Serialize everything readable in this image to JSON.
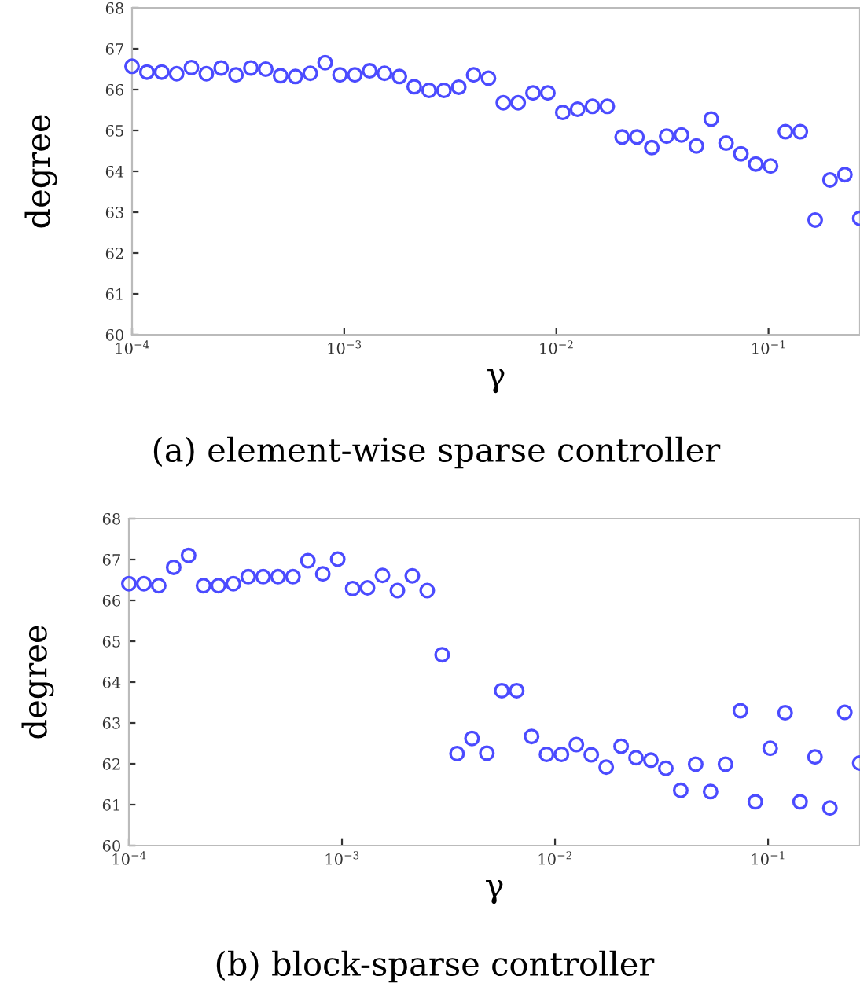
{
  "chart_data": [
    {
      "type": "scatter",
      "xlabel": "γ",
      "ylabel": "degree",
      "log": "x",
      "marker": "circle",
      "grid": false,
      "legend": false,
      "xlim": [
        0.0001,
        0.27
      ],
      "ylim": [
        60,
        68
      ],
      "xticks": [
        {
          "value": 0.0001,
          "label": "10$^{−4}$"
        },
        {
          "value": 0.001,
          "label": "10$^{−3}$"
        },
        {
          "value": 0.01,
          "label": "10$^{−2}$"
        },
        {
          "value": 0.1,
          "label": "10$^{−1}$"
        }
      ],
      "yticks": [
        60,
        61,
        62,
        63,
        64,
        65,
        66,
        67,
        68
      ],
      "annotations": [
        "(a) element-wise sparse controller"
      ],
      "series": [
        {
          "color": "#4b4bff",
          "x": [
            0.0001,
            0.0001175,
            0.000138,
            0.0001622,
            0.0001905,
            0.0002239,
            0.000263,
            0.000309,
            0.0003631,
            0.0004266,
            0.0005012,
            0.0005888,
            0.0006918,
            0.0008128,
            0.000955,
            0.001122,
            0.001318,
            0.001549,
            0.00182,
            0.002138,
            0.002512,
            0.002951,
            0.003467,
            0.004074,
            0.004786,
            0.005623,
            0.006607,
            0.007762,
            0.00912,
            0.01072,
            0.01259,
            0.01479,
            0.01738,
            0.02042,
            0.02399,
            0.02818,
            0.03311,
            0.0389,
            0.04571,
            0.0537,
            0.0631,
            0.07413,
            0.0871,
            0.1023,
            0.1202,
            0.1413,
            0.166,
            0.195,
            0.2291,
            0.2692
          ],
          "values": [
            66.57,
            66.43,
            66.43,
            66.39,
            66.54,
            66.39,
            66.53,
            66.36,
            66.53,
            66.5,
            66.34,
            66.32,
            66.4,
            66.66,
            66.36,
            66.36,
            66.46,
            66.4,
            66.32,
            66.07,
            65.98,
            65.98,
            66.06,
            66.36,
            66.28,
            65.68,
            65.68,
            65.92,
            65.92,
            65.44,
            65.52,
            65.59,
            65.59,
            64.84,
            64.84,
            64.58,
            64.86,
            64.89,
            64.62,
            65.28,
            64.69,
            64.43,
            64.18,
            64.13,
            64.97,
            64.97,
            62.81,
            63.79,
            63.92,
            62.85
          ]
        }
      ]
    },
    {
      "type": "scatter",
      "xlabel": "γ",
      "ylabel": "degree",
      "log": "x",
      "marker": "circle",
      "grid": false,
      "legend": false,
      "xlim": [
        0.0001,
        0.27
      ],
      "ylim": [
        60,
        68
      ],
      "xticks": [
        {
          "value": 0.0001,
          "label": "10$^{−4}$"
        },
        {
          "value": 0.001,
          "label": "10$^{−3}$"
        },
        {
          "value": 0.01,
          "label": "10$^{−2}$"
        },
        {
          "value": 0.1,
          "label": "10$^{−1}$"
        }
      ],
      "yticks": [
        60,
        61,
        62,
        63,
        64,
        65,
        66,
        67,
        68
      ],
      "annotations": [
        "(b) block-sparse controller"
      ],
      "series": [
        {
          "color": "#4b4bff",
          "x": [
            0.0001,
            0.0001175,
            0.000138,
            0.0001622,
            0.0001905,
            0.0002239,
            0.000263,
            0.000309,
            0.0003631,
            0.0004266,
            0.0005012,
            0.0005888,
            0.0006918,
            0.0008128,
            0.000955,
            0.001122,
            0.001318,
            0.001549,
            0.00182,
            0.002138,
            0.002512,
            0.002951,
            0.003467,
            0.004074,
            0.004786,
            0.005623,
            0.006607,
            0.007762,
            0.00912,
            0.01072,
            0.01259,
            0.01479,
            0.01738,
            0.02042,
            0.02399,
            0.02818,
            0.03311,
            0.0389,
            0.04571,
            0.0537,
            0.0631,
            0.07413,
            0.0871,
            0.1023,
            0.1202,
            0.1413,
            0.166,
            0.195,
            0.2291,
            0.2692
          ],
          "values": [
            66.41,
            66.41,
            66.36,
            66.81,
            67.1,
            66.36,
            66.36,
            66.41,
            66.58,
            66.58,
            66.58,
            66.58,
            66.97,
            66.65,
            67.01,
            66.29,
            66.31,
            66.61,
            66.24,
            66.6,
            66.24,
            64.67,
            62.25,
            62.62,
            62.26,
            63.79,
            63.79,
            62.67,
            62.23,
            62.23,
            62.47,
            62.22,
            61.92,
            62.43,
            62.15,
            62.09,
            61.89,
            61.35,
            61.99,
            61.32,
            61.99,
            63.3,
            61.07,
            62.38,
            63.25,
            61.07,
            62.17,
            60.92,
            63.26,
            62.02
          ]
        }
      ]
    }
  ]
}
